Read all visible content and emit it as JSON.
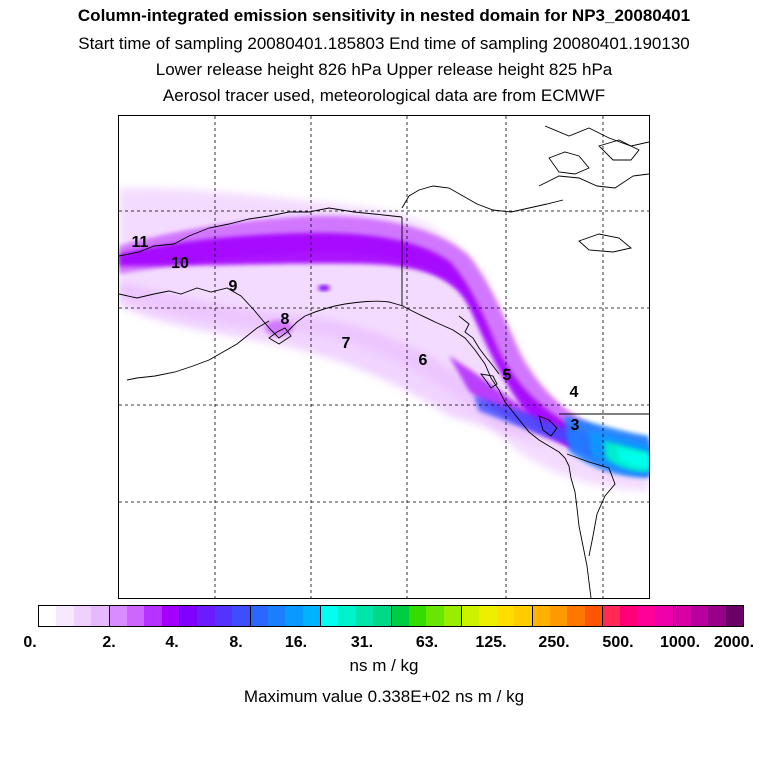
{
  "title": {
    "line1": "Column-integrated emission sensitivity in nested domain for NP3_20080401",
    "line2": "Start time of sampling 20080401.185803     End time of sampling 20080401.190130",
    "line3": "Lower release height  826 hPa        Upper release height  825 hPa",
    "line4": "Aerosol tracer used, meteorological data are from ECMWF"
  },
  "map": {
    "labels": [
      {
        "text": "11",
        "name": "trajectory-label-11"
      },
      {
        "text": "10",
        "name": "trajectory-label-10"
      },
      {
        "text": "9",
        "name": "trajectory-label-9"
      },
      {
        "text": "8",
        "name": "trajectory-label-8"
      },
      {
        "text": "7",
        "name": "trajectory-label-7"
      },
      {
        "text": "6",
        "name": "trajectory-label-6"
      },
      {
        "text": "5",
        "name": "trajectory-label-5"
      },
      {
        "text": "4",
        "name": "trajectory-label-4"
      },
      {
        "text": "3",
        "name": "trajectory-label-3"
      }
    ]
  },
  "colorbar": {
    "colors": [
      "#ffffff",
      "#f8e8ff",
      "#f0d0ff",
      "#e8b8ff",
      "#d98cff",
      "#cc66ff",
      "#b833ff",
      "#a300ff",
      "#8000ff",
      "#6a1cff",
      "#5533ff",
      "#3d4dff",
      "#2a66ff",
      "#1a80ff",
      "#0a99ff",
      "#00b3ff",
      "#00ffee",
      "#00f2cc",
      "#00e6aa",
      "#00d988",
      "#00cc44",
      "#33dd00",
      "#66e600",
      "#99ee00",
      "#ccf200",
      "#eeee00",
      "#ffdd00",
      "#ffcc00",
      "#ffb300",
      "#ff9900",
      "#ff7700",
      "#ff5500",
      "#ff2a55",
      "#ff0077",
      "#ff0099",
      "#ee00aa",
      "#d600a3",
      "#b8009e",
      "#990088",
      "#6a0066"
    ],
    "tick_labels": [
      "0.",
      "2.",
      "4.",
      "8.",
      "16.",
      "31.",
      "63.",
      "125.",
      "250.",
      "500.",
      "1000.",
      "2000."
    ],
    "units": "ns m / kg"
  },
  "max_value_text": "Maximum value  0.338E+02 ns m / kg"
}
